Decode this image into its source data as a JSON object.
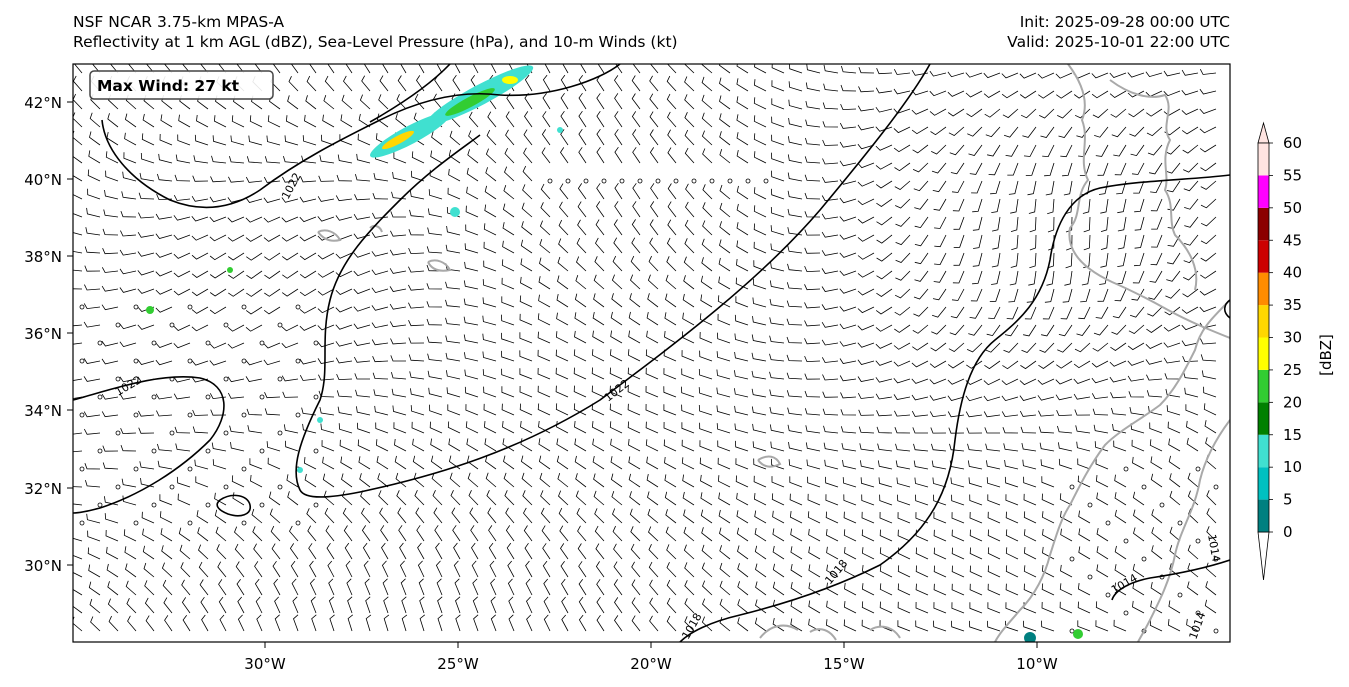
{
  "header": {
    "model_line": "NSF NCAR 3.75-km MPAS-A",
    "fields_line": "Reflectivity at 1 km AGL (dBZ), Sea-Level Pressure (hPa), and 10-m Winds (kt)",
    "init_line": "Init: 2025-09-28 00:00 UTC",
    "valid_line": "Valid: 2025-10-01 22:00 UTC"
  },
  "max_wind_label": "Max Wind: 27 kt",
  "lat_labels": [
    "42°N",
    "40°N",
    "38°N",
    "36°N",
    "34°N",
    "32°N",
    "30°N"
  ],
  "lon_labels": [
    "30°W",
    "25°W",
    "20°W",
    "15°W",
    "10°W"
  ],
  "isobar_labels": [
    "1022",
    "1022",
    "1022",
    "1018",
    "1018",
    "1014",
    "1014",
    "1014"
  ],
  "colorbar": {
    "unit_label": "[dBZ]",
    "ticks": [
      "0",
      "5",
      "10",
      "15",
      "20",
      "25",
      "30",
      "35",
      "40",
      "45",
      "50",
      "55",
      "60"
    ],
    "colors": [
      "#008080",
      "#00c0c0",
      "#40e0d0",
      "#008000",
      "#32cd32",
      "#ffff00",
      "#ffd700",
      "#ff8c00",
      "#cc0000",
      "#8b0000",
      "#ff00ff",
      "#ffe4e1"
    ]
  },
  "colors": {
    "isobar": "#000000",
    "coastline": "#a9a9a9",
    "barb": "#000000"
  }
}
